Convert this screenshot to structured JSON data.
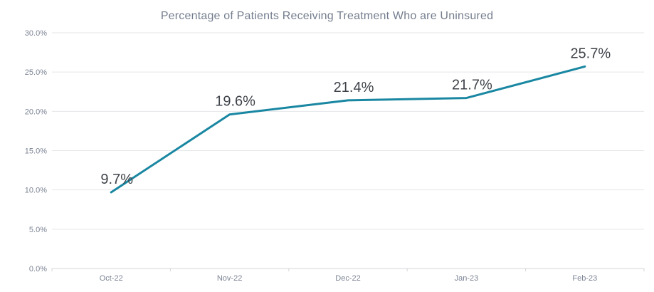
{
  "chart_data": {
    "type": "line",
    "title": "Percentage of Patients Receiving Treatment Who are Uninsured",
    "categories": [
      "Oct-22",
      "Nov-22",
      "Dec-22",
      "Jan-23",
      "Feb-23"
    ],
    "values": [
      9.7,
      19.6,
      21.4,
      21.7,
      25.7
    ],
    "data_labels": [
      "9.7%",
      "19.6%",
      "21.4%",
      "21.7%",
      "25.7%"
    ],
    "xlabel": "",
    "ylabel": "",
    "ylim": [
      0,
      30
    ],
    "ytick_values": [
      0,
      5,
      10,
      15,
      20,
      25,
      30
    ],
    "ytick_labels": [
      "0.0%",
      "5.0%",
      "10.0%",
      "15.0%",
      "20.0%",
      "25.0%",
      "30.0%"
    ],
    "grid": "horizontal",
    "legend": "none",
    "colors": {
      "line": "#1a87a2",
      "title": "#747d8e",
      "axis_text": "#7c8494",
      "data_label": "#3f4349",
      "gridline": "#e5e6e9",
      "axis_line": "#d4d6da"
    }
  }
}
